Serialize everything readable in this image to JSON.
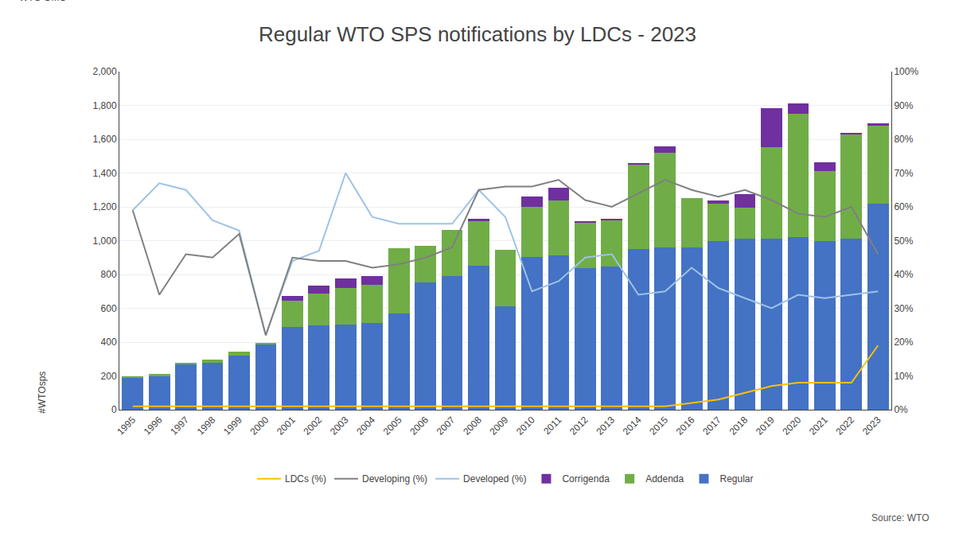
{
  "chart_data": {
    "type": "bar",
    "title": "Regular WTO SPS notifications by LDCs - 2023",
    "annotations": [
      "Source: WTO",
      "WTO OMC",
      "#WTOsps"
    ],
    "categories": [
      "1995",
      "1996",
      "1997",
      "1998",
      "1999",
      "2000",
      "2001",
      "2002",
      "2003",
      "2004",
      "2005",
      "2006",
      "2007",
      "2008",
      "2009",
      "2010",
      "2011",
      "2012",
      "2013",
      "2014",
      "2015",
      "2016",
      "2017",
      "2018",
      "2019",
      "2020",
      "2021",
      "2022",
      "2023"
    ],
    "stacked": true,
    "grid": true,
    "legend": "bottom",
    "series": [
      {
        "name": "Regular",
        "type": "bar",
        "color": "#4472C4",
        "values": [
          190,
          200,
          270,
          280,
          320,
          385,
          490,
          500,
          505,
          515,
          570,
          755,
          790,
          850,
          610,
          905,
          915,
          840,
          845,
          950,
          960,
          960,
          1000,
          1010,
          1010,
          1020,
          1000,
          1010,
          1220
        ]
      },
      {
        "name": "Addenda",
        "type": "bar",
        "color": "#70AD47",
        "values": [
          5,
          10,
          5,
          15,
          25,
          10,
          155,
          185,
          215,
          225,
          385,
          215,
          275,
          265,
          335,
          295,
          325,
          265,
          275,
          500,
          560,
          290,
          220,
          185,
          545,
          730,
          410,
          620,
          460
        ]
      },
      {
        "name": "Corrigenda",
        "type": "bar",
        "color": "#7030A0",
        "values": [
          0,
          0,
          0,
          0,
          0,
          0,
          30,
          50,
          55,
          50,
          0,
          0,
          0,
          15,
          0,
          60,
          75,
          10,
          5,
          10,
          40,
          0,
          20,
          80,
          230,
          60,
          55,
          10,
          15
        ]
      },
      {
        "name": "Developed (%)",
        "type": "line",
        "axis": "y2",
        "color": "#9DC3E6",
        "values": [
          59,
          67,
          65,
          56,
          53,
          22,
          44,
          47,
          70,
          57,
          55,
          55,
          55,
          65,
          57,
          35,
          38,
          45,
          46,
          34,
          35,
          42,
          36,
          33,
          30,
          34,
          33,
          34,
          35
        ]
      },
      {
        "name": "Developing (%)",
        "type": "line",
        "axis": "y2",
        "color": "#808080",
        "values": [
          59,
          34,
          46,
          45,
          52,
          22,
          45,
          44,
          44,
          42,
          43,
          45,
          48,
          65,
          66,
          66,
          68,
          62,
          60,
          64,
          68,
          65,
          63,
          65,
          62,
          58,
          57,
          60,
          46
        ]
      },
      {
        "name": "LDCs (%)",
        "type": "line",
        "axis": "y2",
        "color": "#FFC000",
        "values": [
          1,
          1,
          1,
          1,
          1,
          1,
          1,
          1,
          1,
          1,
          1,
          1,
          1,
          1,
          1,
          1,
          1,
          1,
          1,
          1,
          1,
          2,
          3,
          5,
          7,
          8,
          8,
          8,
          19
        ]
      }
    ],
    "ylim": [
      0,
      2000
    ],
    "yticks": [
      0,
      200,
      400,
      600,
      800,
      {
        "value": 1000,
        "label": "1,000"
      },
      {
        "value": 1200,
        "label": "1,200"
      },
      {
        "value": 1400,
        "label": "1,400"
      },
      {
        "value": 1600,
        "label": "1,600"
      },
      {
        "value": 1800,
        "label": "1,800"
      },
      {
        "value": 2000,
        "label": "2,000"
      }
    ],
    "y2lim": [
      0,
      100
    ],
    "y2ticks": [
      {
        "value": 0,
        "label": "0%"
      },
      {
        "value": 10,
        "label": "10%"
      },
      {
        "value": 20,
        "label": "20%"
      },
      {
        "value": 30,
        "label": "30%"
      },
      {
        "value": 40,
        "label": "40%"
      },
      {
        "value": 50,
        "label": "50%"
      },
      {
        "value": 60,
        "label": "60%"
      },
      {
        "value": 70,
        "label": "70%"
      },
      {
        "value": 80,
        "label": "80%"
      },
      {
        "value": 90,
        "label": "90%"
      },
      {
        "value": 100,
        "label": "100%"
      }
    ]
  }
}
